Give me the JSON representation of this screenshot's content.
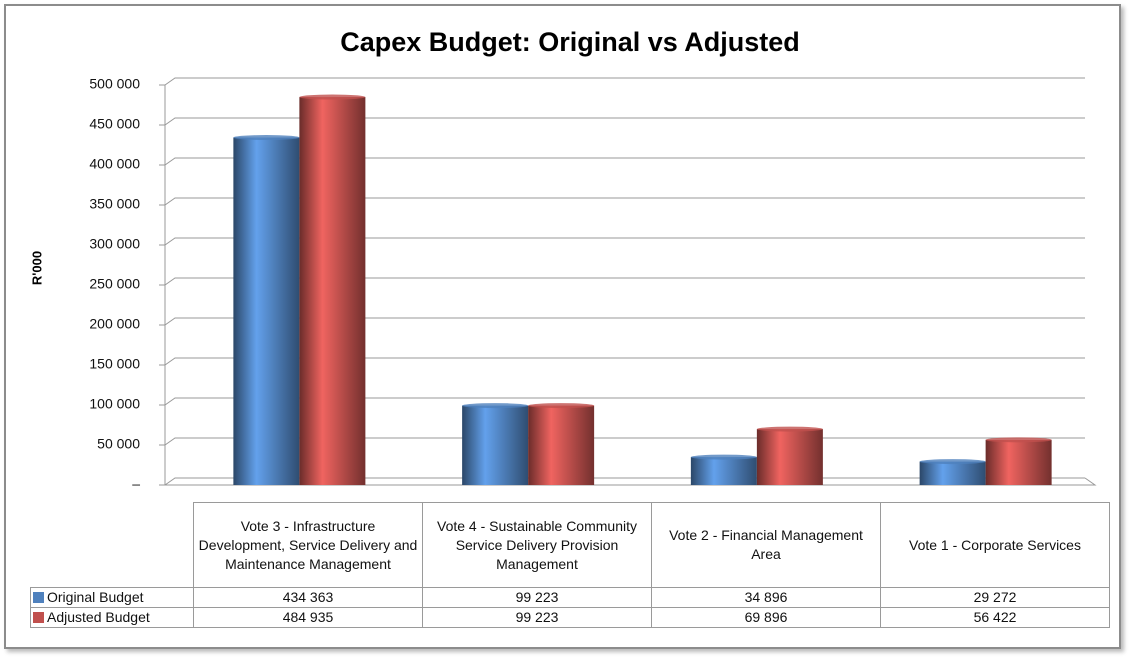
{
  "chart_data": {
    "type": "bar",
    "title": "Capex Budget: Original vs Adjusted",
    "y_label": "R'000",
    "categories": [
      "Vote 3 - Infrastructure Development, Service Delivery and Maintenance Management",
      "Vote 4 - Sustainable Community Service Delivery Provision Management",
      "Vote 2 - Financial Management Area",
      "Vote 1 - Corporate Services"
    ],
    "series": [
      {
        "name": "Original Budget",
        "color": "#4f81bd",
        "values": [
          434363,
          99223,
          34896,
          29272
        ],
        "value_labels": [
          "434 363",
          "99 223",
          "34 896",
          "29 272"
        ]
      },
      {
        "name": "Adjusted Budget",
        "color": "#c0504d",
        "values": [
          484935,
          99223,
          69896,
          56422
        ],
        "value_labels": [
          "484 935",
          "99 223",
          "69 896",
          "56 422"
        ]
      }
    ],
    "ylim": [
      0,
      500000
    ],
    "yticks": [
      {
        "value": 0,
        "label": "–"
      },
      {
        "value": 50000,
        "label": "50 000"
      },
      {
        "value": 100000,
        "label": "100 000"
      },
      {
        "value": 150000,
        "label": "150 000"
      },
      {
        "value": 200000,
        "label": "200 000"
      },
      {
        "value": 250000,
        "label": "250 000"
      },
      {
        "value": 300000,
        "label": "300 000"
      },
      {
        "value": 350000,
        "label": "350 000"
      },
      {
        "value": 400000,
        "label": "400 000"
      },
      {
        "value": 450000,
        "label": "450 000"
      },
      {
        "value": 500000,
        "label": "500 000"
      }
    ],
    "grid": true
  }
}
